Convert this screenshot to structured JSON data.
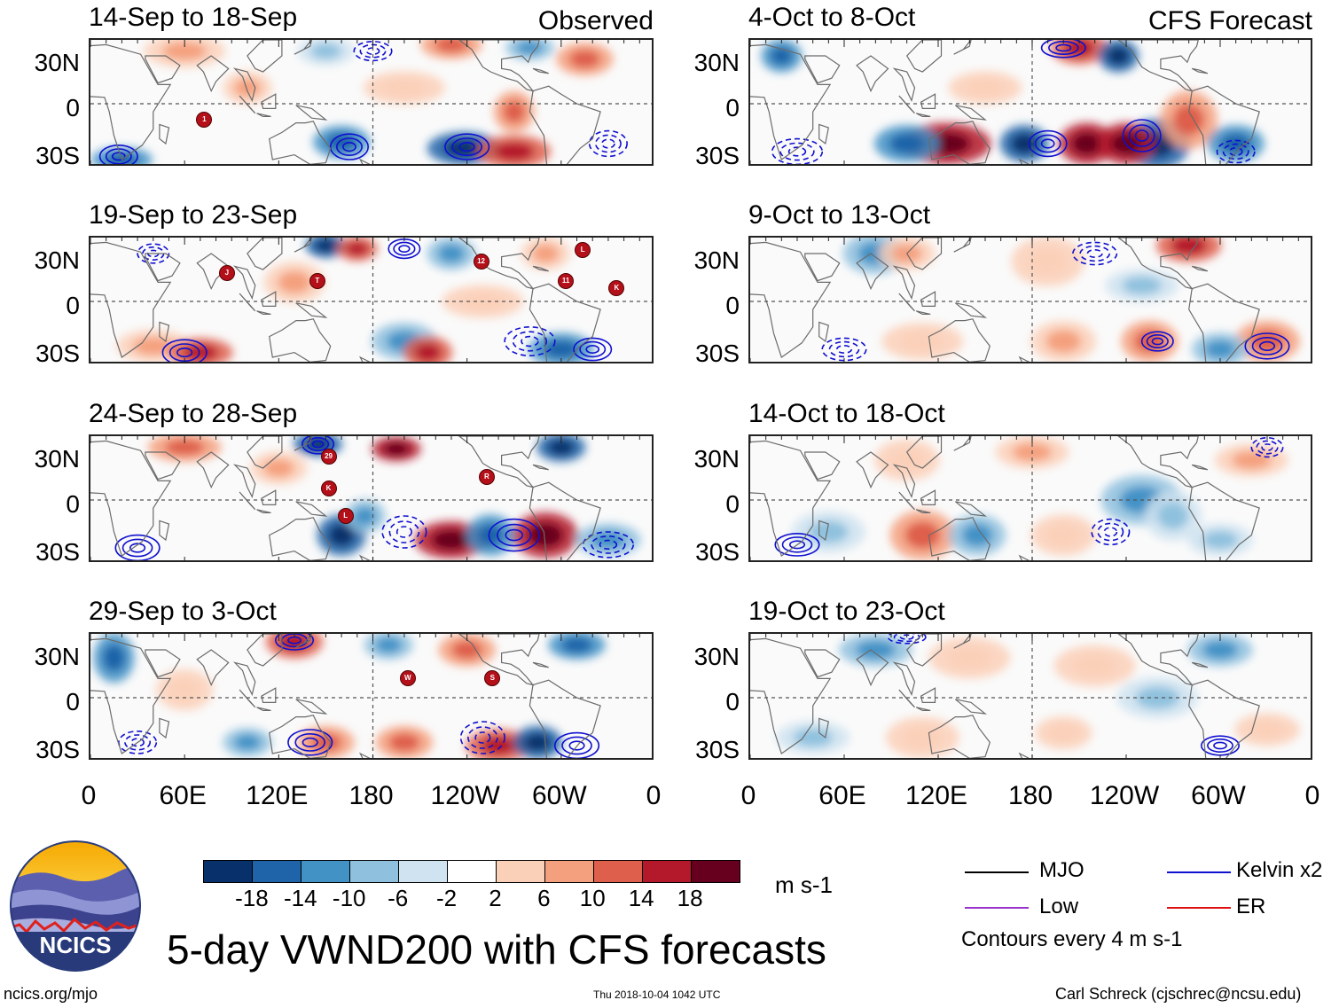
{
  "panels": {
    "observed_tag": "Observed",
    "forecast_tag": "CFS Forecast",
    "left": [
      "14-Sep to 18-Sep",
      "19-Sep to 23-Sep",
      "24-Sep to 28-Sep",
      "29-Sep to 3-Oct"
    ],
    "right": [
      "4-Oct to 8-Oct",
      "9-Oct to 13-Oct",
      "14-Oct to 18-Oct",
      "19-Oct to 23-Oct"
    ]
  },
  "axes": {
    "lat_labels": [
      "30N",
      "0",
      "30S"
    ],
    "lon_labels": [
      "0",
      "60E",
      "120E",
      "180",
      "120W",
      "60W",
      "0"
    ]
  },
  "storm_markers": {
    "p1": [
      "1"
    ],
    "p2": [
      "J",
      "T",
      "12",
      "L",
      "11",
      "K"
    ],
    "p3": [
      "29",
      "K",
      "L",
      "R"
    ],
    "p4": [
      "W",
      "S"
    ]
  },
  "colorbar": {
    "labels": [
      "-18",
      "-14",
      "-10",
      "-6",
      "-2",
      "2",
      "6",
      "10",
      "14",
      "18"
    ],
    "colors": [
      "#08306b",
      "#1f63a8",
      "#4292c6",
      "#8fc1de",
      "#cfe3f0",
      "#ffffff",
      "#fbd0b9",
      "#f4a07e",
      "#de5f4c",
      "#b4182b",
      "#67001f"
    ],
    "units": "m s-1"
  },
  "legend": {
    "items": [
      {
        "label": "MJO",
        "color": "#000000"
      },
      {
        "label": "Kelvin x2",
        "color": "#1010d0"
      },
      {
        "label": "Low",
        "color": "#9933cc"
      },
      {
        "label": "ER",
        "color": "#e01010"
      }
    ],
    "contours_note": "Contours every 4 m s-1"
  },
  "logo": {
    "text": "NCICS"
  },
  "title": "5-day VWND200 with CFS forecasts",
  "footer": {
    "url": "ncics.org/mjo",
    "timestamp": "Thu 2018-10-04 1042 UTC",
    "author": "Carl Schreck (cjschrec@ncsu.edu)"
  }
}
